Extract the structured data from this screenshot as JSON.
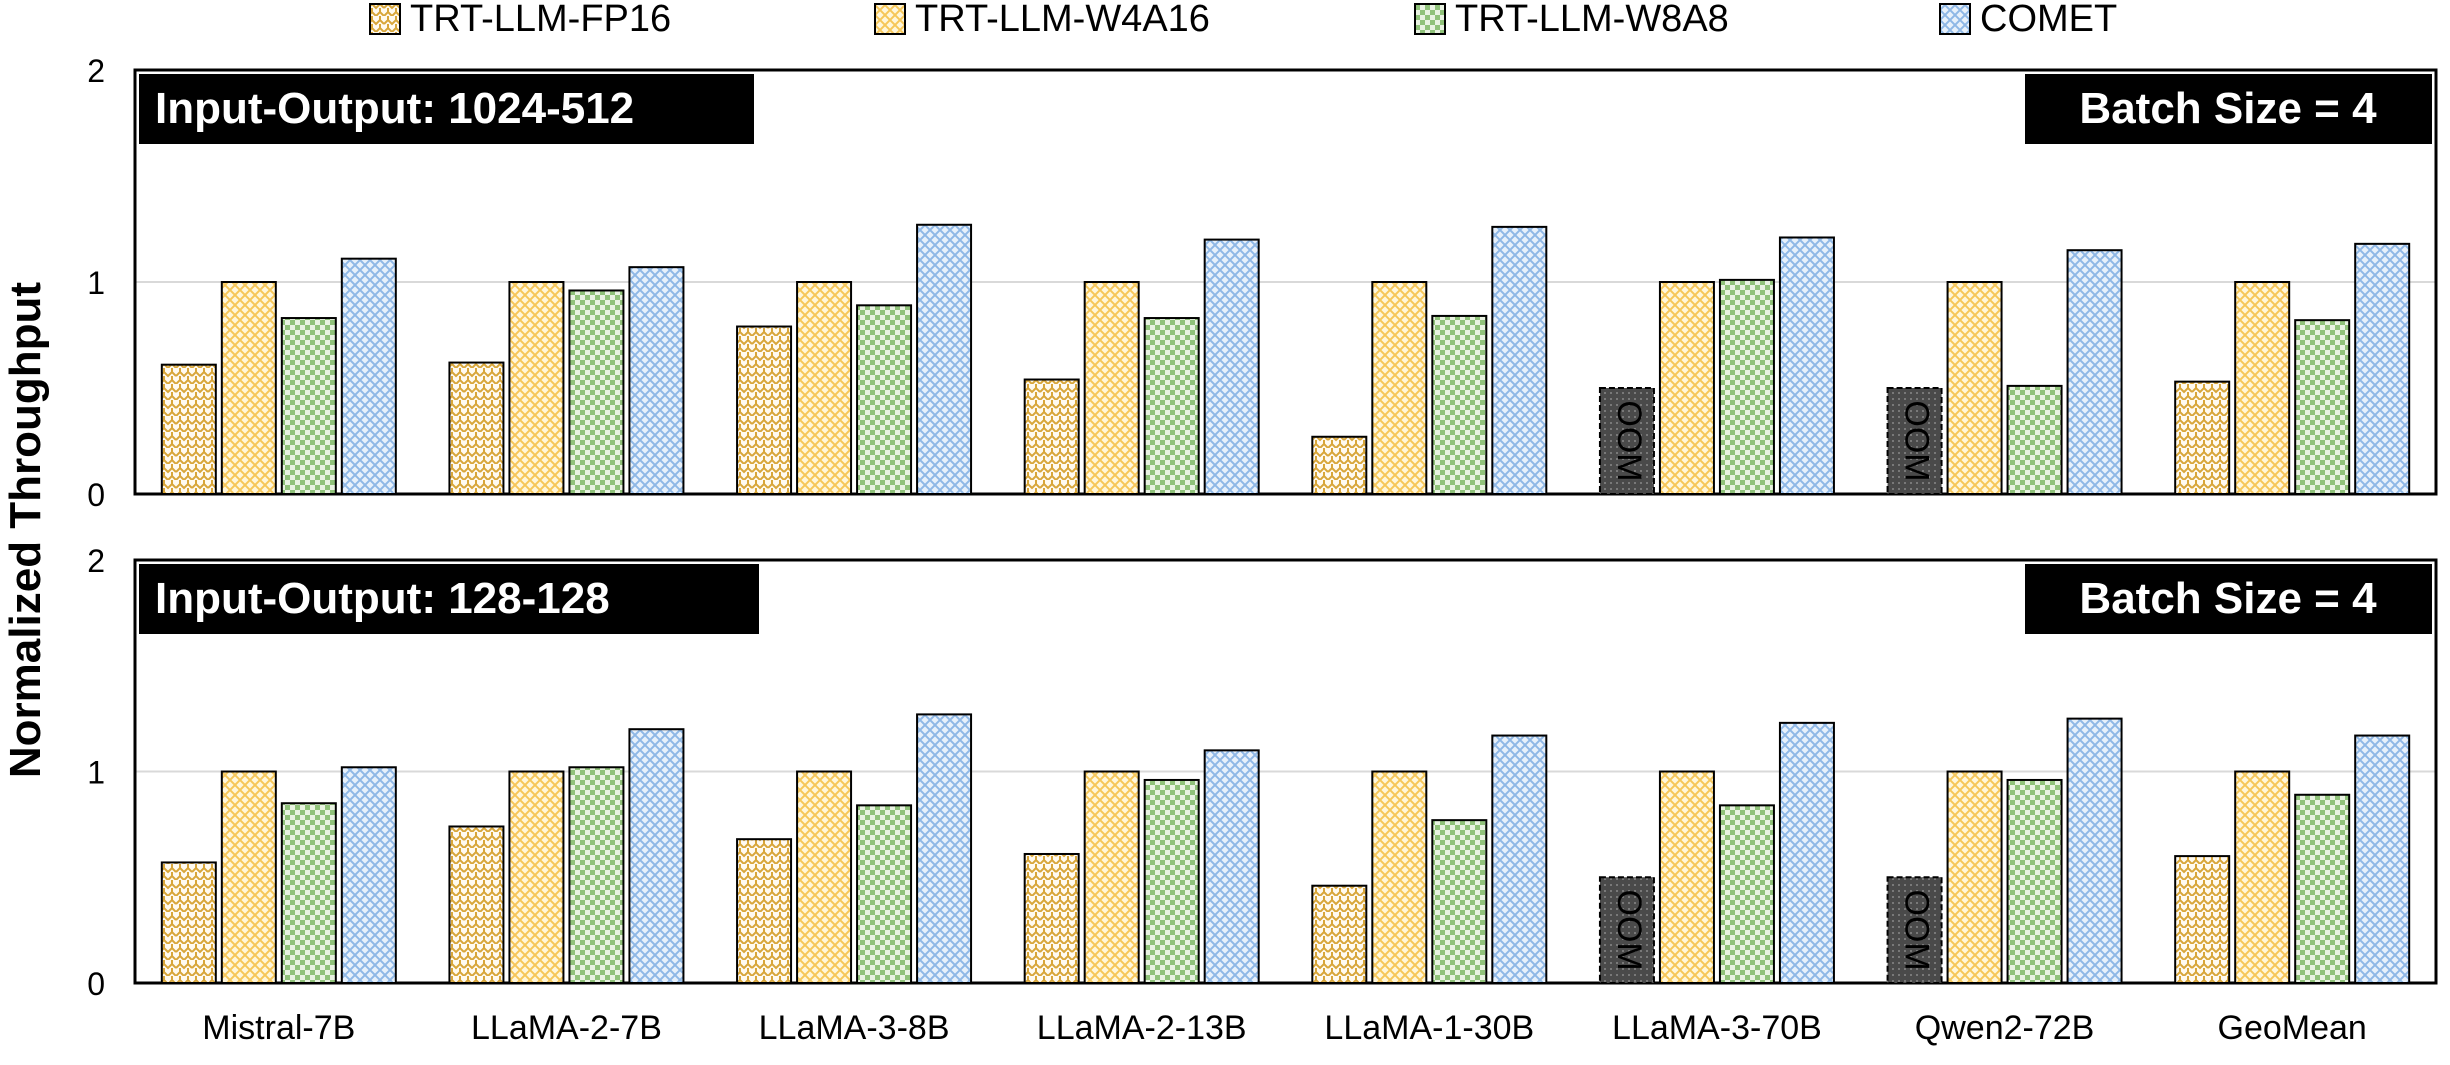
{
  "colors": {
    "fp16": "#d8a63a",
    "w4a16": "#f6c75a",
    "w8a8": "#90c27a",
    "comet": "#8fb8e6",
    "grid": "#d9d9d9",
    "oom_fill": "#555555"
  },
  "legend": [
    {
      "name": "TRT-LLM-FP16",
      "key": "fp16",
      "pattern": "pat-fp16"
    },
    {
      "name": "TRT-LLM-W4A16",
      "key": "w4a16",
      "pattern": "pat-w4a16"
    },
    {
      "name": "TRT-LLM-W8A8",
      "key": "w8a8",
      "pattern": "pat-w8a8"
    },
    {
      "name": "COMET",
      "key": "comet",
      "pattern": "pat-comet"
    }
  ],
  "ylabel": "Normalized Throughput",
  "oom_label": "OOM",
  "chart_data": [
    {
      "type": "bar",
      "panel_label": "Input-Output: 1024-512",
      "batch_label": "Batch Size = 4",
      "categories": [
        "Mistral-7B",
        "LLaMA-2-7B",
        "LLaMA-3-8B",
        "LLaMA-2-13B",
        "LLaMA-1-30B",
        "LLaMA-3-70B",
        "Qwen2-72B",
        "GeoMean"
      ],
      "ylim": [
        0,
        2
      ],
      "yticks": [
        0,
        1,
        2
      ],
      "grid": true,
      "legend_position": "top",
      "series": [
        {
          "name": "TRT-LLM-FP16",
          "values": [
            0.61,
            0.62,
            0.79,
            0.54,
            0.27,
            null,
            null,
            0.53
          ]
        },
        {
          "name": "TRT-LLM-W4A16",
          "values": [
            1.0,
            1.0,
            1.0,
            1.0,
            1.0,
            1.0,
            1.0,
            1.0
          ]
        },
        {
          "name": "TRT-LLM-W8A8",
          "values": [
            0.83,
            0.96,
            0.89,
            0.83,
            0.84,
            1.01,
            0.51,
            0.82
          ]
        },
        {
          "name": "COMET",
          "values": [
            1.11,
            1.07,
            1.27,
            1.2,
            1.26,
            1.21,
            1.15,
            1.18
          ]
        }
      ],
      "annotations": [
        {
          "category": "LLaMA-3-70B",
          "series": "TRT-LLM-FP16",
          "text": "OOM"
        },
        {
          "category": "Qwen2-72B",
          "series": "TRT-LLM-FP16",
          "text": "OOM"
        }
      ]
    },
    {
      "type": "bar",
      "panel_label": "Input-Output: 128-128",
      "batch_label": "Batch Size = 4",
      "categories": [
        "Mistral-7B",
        "LLaMA-2-7B",
        "LLaMA-3-8B",
        "LLaMA-2-13B",
        "LLaMA-1-30B",
        "LLaMA-3-70B",
        "Qwen2-72B",
        "GeoMean"
      ],
      "ylim": [
        0,
        2
      ],
      "yticks": [
        0,
        1,
        2
      ],
      "grid": true,
      "legend_position": "top",
      "series": [
        {
          "name": "TRT-LLM-FP16",
          "values": [
            0.57,
            0.74,
            0.68,
            0.61,
            0.46,
            null,
            null,
            0.6
          ]
        },
        {
          "name": "TRT-LLM-W4A16",
          "values": [
            1.0,
            1.0,
            1.0,
            1.0,
            1.0,
            1.0,
            1.0,
            1.0
          ]
        },
        {
          "name": "TRT-LLM-W8A8",
          "values": [
            0.85,
            1.02,
            0.84,
            0.96,
            0.77,
            0.84,
            0.96,
            0.89
          ]
        },
        {
          "name": "COMET",
          "values": [
            1.02,
            1.2,
            1.27,
            1.1,
            1.17,
            1.23,
            1.25,
            1.17
          ]
        }
      ],
      "annotations": [
        {
          "category": "LLaMA-3-70B",
          "series": "TRT-LLM-FP16",
          "text": "OOM"
        },
        {
          "category": "Qwen2-72B",
          "series": "TRT-LLM-FP16",
          "text": "OOM"
        }
      ]
    }
  ]
}
